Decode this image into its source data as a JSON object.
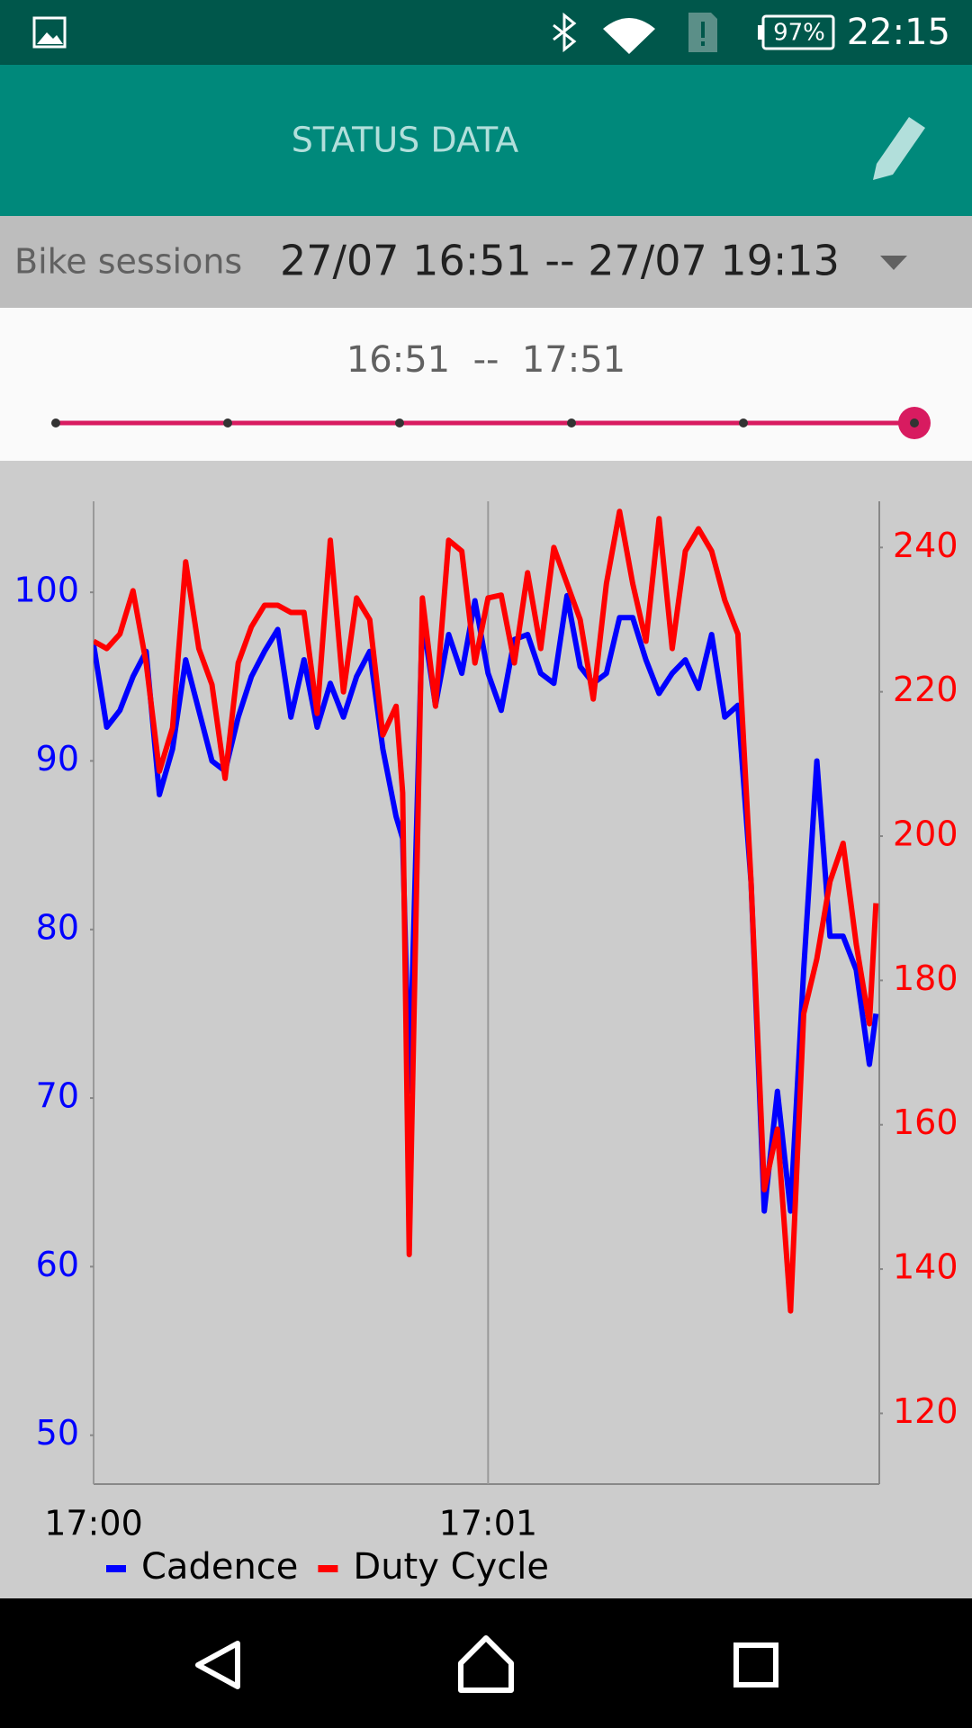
{
  "status_bar": {
    "battery": "97%",
    "time": "22:15"
  },
  "app_bar": {
    "title": "STATUS DATA"
  },
  "selector": {
    "label": "Bike sessions",
    "value": "27/07 16:51 -- 27/07 19:13"
  },
  "range": {
    "text": "16:51  --  17:51"
  },
  "chart_data": {
    "type": "line",
    "x": [
      0,
      2,
      4,
      6,
      8,
      10,
      12,
      14,
      16,
      18,
      20,
      22,
      24,
      26,
      28,
      30,
      32,
      34,
      36,
      38,
      40,
      42,
      44,
      46,
      47,
      48,
      50,
      52,
      54,
      56,
      58,
      60,
      62,
      64,
      66,
      68,
      70,
      72,
      74,
      76,
      78,
      80,
      82,
      84,
      86,
      88,
      90,
      92,
      94,
      96,
      98,
      100,
      102,
      104,
      106,
      108,
      110,
      112,
      114,
      116,
      118,
      119
    ],
    "xlim": [
      0,
      119.5
    ],
    "xticks": [
      {
        "value": 0,
        "label": "17:00"
      },
      {
        "value": 60,
        "label": "17:01"
      }
    ],
    "ylim": [
      47.1,
      105.4
    ],
    "yticks": [
      50,
      60,
      70,
      80,
      90,
      100
    ],
    "y2lim": [
      110.2,
      246.4
    ],
    "y2ticks": [
      120,
      140,
      160,
      180,
      200,
      220,
      240
    ],
    "grid": "x",
    "legend": "bottom-left",
    "series": [
      {
        "name": "Cadence",
        "color": "#0000ff",
        "axis": "y",
        "values": [
          96.9,
          92,
          93,
          95,
          96.5,
          88,
          90.7,
          96,
          93,
          90,
          89.4,
          92.6,
          95,
          96.5,
          97.8,
          92.6,
          96,
          92,
          94.6,
          92.6,
          95,
          96.5,
          90.7,
          86.7,
          85.4,
          70.4,
          98.5,
          93.3,
          97.5,
          95.2,
          99.5,
          95.2,
          93,
          97.2,
          97.5,
          95.2,
          94.6,
          99.8,
          95.6,
          94.6,
          95.2,
          98.5,
          98.5,
          96,
          94,
          95.2,
          96,
          94.3,
          97.5,
          92.6,
          93.3,
          82.8,
          63.3,
          70.4,
          63.3,
          77.6,
          90,
          79.6,
          79.6,
          77.6,
          72,
          75
        ]
      },
      {
        "name": "Duty Cycle",
        "color": "#ff0000",
        "axis": "y2",
        "values": [
          227,
          226,
          228,
          234,
          224,
          209,
          215,
          238,
          226,
          221,
          208,
          224,
          229,
          232,
          232,
          231,
          231,
          217,
          241,
          220,
          233,
          230,
          214,
          218,
          206,
          142,
          233,
          218,
          241,
          239.5,
          224,
          233,
          233.4,
          224,
          236.5,
          226,
          240,
          235,
          230,
          219,
          235,
          245,
          235,
          227,
          244,
          226,
          239.5,
          242.6,
          239.5,
          232.7,
          228,
          193.7,
          151,
          159.4,
          134.2,
          175.4,
          183,
          193.7,
          199,
          185,
          174,
          190.7
        ]
      }
    ]
  }
}
